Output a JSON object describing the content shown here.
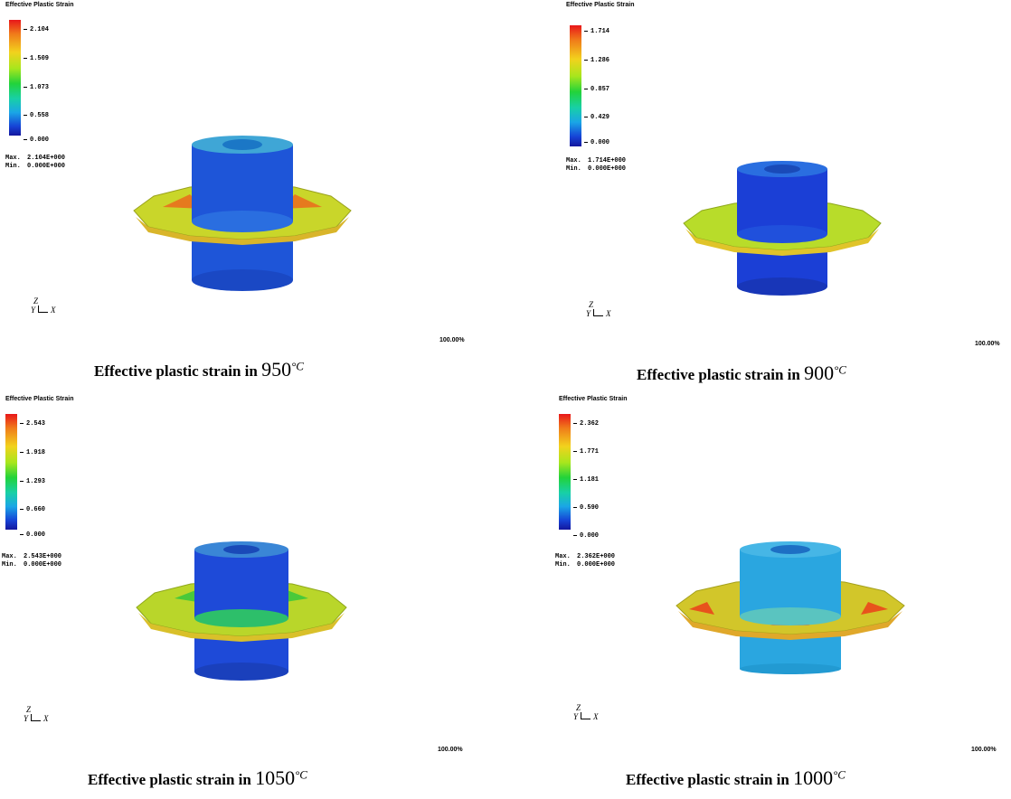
{
  "panels": [
    {
      "legend_title": "Effective Plastic Strain",
      "ticks": [
        "2.104",
        "1.509",
        "1.073",
        "0.558",
        "0.000"
      ],
      "max_label": "Max.",
      "max_value": "2.104E+000",
      "min_label": "Min.",
      "min_value": "0.000E+000",
      "axis_z": "Z",
      "axis_y": "Y",
      "axis_x": "X",
      "zoom": "100.00%",
      "caption_text": "Effective plastic strain in",
      "caption_temp": "950",
      "caption_unit": "°C",
      "body_color": "#1e55d8",
      "flange_color": "#c9d62a"
    },
    {
      "legend_title": "Effective Plastic Strain",
      "ticks": [
        "1.714",
        "1.286",
        "0.857",
        "0.429",
        "0.000"
      ],
      "max_label": "Max.",
      "max_value": "1.714E+000",
      "min_label": "Min.",
      "min_value": "0.000E+000",
      "axis_z": "Z",
      "axis_y": "Y",
      "axis_x": "X",
      "zoom": "100.00%",
      "caption_text": "Effective plastic strain in",
      "caption_temp": "900",
      "caption_unit": "°C",
      "body_color": "#1b3fd6",
      "flange_color": "#b8dc2a"
    },
    {
      "legend_title": "Effective Plastic Strain",
      "ticks": [
        "2.543",
        "1.918",
        "1.293",
        "0.660",
        "0.000"
      ],
      "max_label": "Max.",
      "max_value": "2.543E+000",
      "min_label": "Min.",
      "min_value": "0.000E+000",
      "axis_z": "Z",
      "axis_y": "Y",
      "axis_x": "X",
      "zoom": "100.00%",
      "caption_text": "Effective plastic strain in",
      "caption_temp": "1050",
      "caption_unit": "°C",
      "body_color": "#1e4ad8",
      "flange_color": "#b9d62a"
    },
    {
      "legend_title": "Effective Plastic Strain",
      "ticks": [
        "2.362",
        "1.771",
        "1.181",
        "0.590",
        "0.000"
      ],
      "max_label": "Max.",
      "max_value": "2.362E+000",
      "min_label": "Min.",
      "min_value": "0.000E+000",
      "axis_z": "Z",
      "axis_y": "Y",
      "axis_x": "X",
      "zoom": "100.00%",
      "caption_text": "Effective plastic strain in",
      "caption_temp": "1000",
      "caption_unit": "°C",
      "body_color": "#2aa6e0",
      "flange_color": "#d2c62a"
    }
  ]
}
